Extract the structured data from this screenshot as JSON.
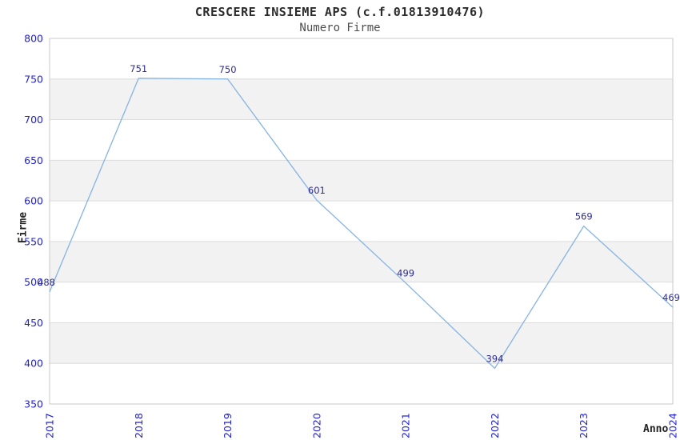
{
  "header": {
    "title": "CRESCERE INSIEME APS (c.f.01813910476)",
    "subtitle": "Numero Firme"
  },
  "chart_data": {
    "type": "line",
    "title": "CRESCERE INSIEME APS (c.f.01813910476)",
    "subtitle": "Numero Firme",
    "xlabel": "Anno",
    "ylabel": "Firme",
    "categories": [
      "2017",
      "2018",
      "2019",
      "2020",
      "2021",
      "2022",
      "2023",
      "2024"
    ],
    "values": [
      488,
      751,
      750,
      601,
      499,
      394,
      569,
      469
    ],
    "ylim": [
      350,
      800
    ],
    "ytick_step": 50,
    "yticks": [
      350,
      400,
      450,
      500,
      550,
      600,
      650,
      700,
      750,
      800
    ],
    "grid": "horizontal",
    "legend": "none",
    "band_pattern": "alternating-horizontal",
    "colors": {
      "line": "#85b3e4",
      "tick_label": "#2121d6",
      "data_label": "#2d2d8f",
      "grid_line": "#dcdcdc",
      "band_fill": "#f2f2f2",
      "plot_border": "#c9c9c9",
      "title": "#2b2b2b",
      "subtitle": "#4d4d4d",
      "axis_title": "#222222",
      "background": "#ffffff"
    }
  }
}
